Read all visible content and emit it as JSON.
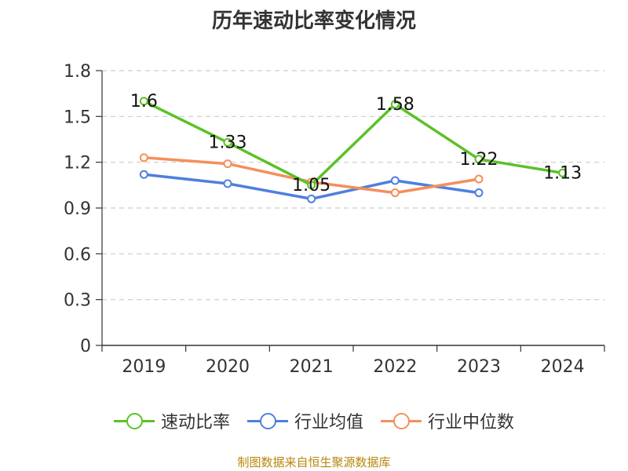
{
  "chart_data": {
    "type": "line",
    "title": "历年速动比率变化情况",
    "categories": [
      "2019",
      "2020",
      "2021",
      "2022",
      "2023",
      "2024"
    ],
    "yticks": [
      "0",
      "0.3",
      "0.6",
      "0.9",
      "1.2",
      "1.5",
      "1.8"
    ],
    "ylim": [
      0,
      1.8
    ],
    "grid": true,
    "legend_position": "bottom",
    "series": [
      {
        "name": "速动比率",
        "color": "#5cc126",
        "values": [
          1.6,
          1.33,
          1.05,
          1.58,
          1.22,
          1.13
        ],
        "labels": [
          "1.6",
          "1.33",
          "1.05",
          "1.58",
          "1.22",
          "1.13"
        ]
      },
      {
        "name": "行业均值",
        "color": "#4f7fdd",
        "values": [
          1.12,
          1.06,
          0.96,
          1.08,
          1.0,
          null
        ]
      },
      {
        "name": "行业中位数",
        "color": "#f58f5b",
        "values": [
          1.23,
          1.19,
          1.07,
          1.0,
          1.09,
          null
        ]
      }
    ]
  },
  "source": "制图数据来自恒生聚源数据库"
}
